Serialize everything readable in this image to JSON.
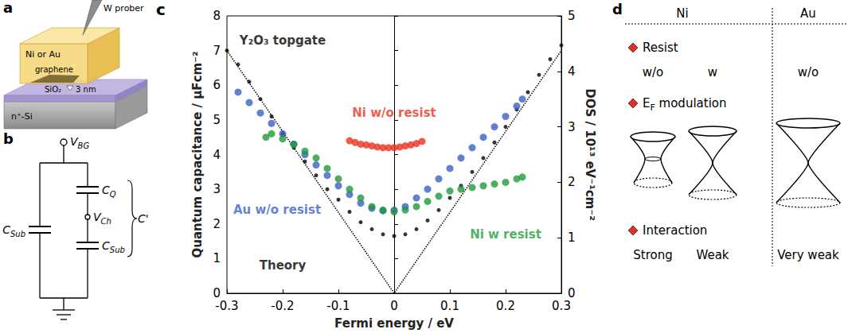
{
  "panels": {
    "a": {
      "letter": "a",
      "labels": {
        "prober": "W prober",
        "metal": "Ni or Au",
        "graphene": "graphene",
        "oxide": "SiO₂",
        "thickness": "3 nm",
        "substrate": "n⁺-Si"
      }
    },
    "b": {
      "letter": "b",
      "labels": {
        "gate": {
          "main": "V",
          "sub": "BG"
        },
        "c_sub_left": {
          "main": "C",
          "sub": "Sub"
        },
        "c_q": {
          "main": "C",
          "sub": "Q"
        },
        "channel": {
          "main": "V",
          "sub": "Ch"
        },
        "c_sub_right": {
          "main": "C",
          "sub": "Sub"
        },
        "total": {
          "main": "C'"
        }
      }
    },
    "c": {
      "letter": "c"
    },
    "d": {
      "letter": "d",
      "groups": [
        "Ni",
        "Au"
      ],
      "resist": {
        "head": "Resist",
        "cells": [
          "w/o",
          "w",
          "w/o"
        ]
      },
      "modulation": {
        "head_main": "E",
        "head_sub": "F",
        "head_rest": " modulation"
      },
      "interaction": {
        "head": "Interaction",
        "cells": [
          "Strong",
          "Weak",
          "Very weak"
        ]
      }
    }
  },
  "chart_data": {
    "type": "scatter",
    "xlabel": "Fermi energy / eV",
    "ylabel": "Quantum capacitance / µFcm⁻²",
    "y2label": "DOS / 10¹³ eV⁻¹cm⁻²",
    "xlim": [
      -0.3,
      0.3
    ],
    "xticks": [
      -0.3,
      -0.2,
      -0.1,
      0,
      0.1,
      0.2,
      0.3
    ],
    "ylim": [
      0,
      8
    ],
    "yticks": [
      0,
      1,
      2,
      3,
      4,
      5,
      6,
      7,
      8
    ],
    "y2lim": [
      0,
      5
    ],
    "y2ticks": [
      0,
      1,
      2,
      3,
      4,
      5
    ],
    "grid": false,
    "series": [
      {
        "type": "scatter",
        "marker": "circle",
        "color": "#000000",
        "x": [
          -0.3,
          -0.28,
          -0.26,
          -0.24,
          -0.22,
          -0.2,
          -0.18,
          -0.16,
          -0.14,
          -0.12,
          -0.1,
          -0.08,
          -0.06,
          -0.04,
          -0.02,
          0,
          0.02,
          0.04,
          0.06,
          0.08,
          0.1,
          0.12,
          0.14,
          0.16,
          0.18,
          0.2,
          0.22,
          0.24,
          0.26,
          0.28,
          0.3
        ],
        "values": [
          7.0,
          6.6,
          6.1,
          5.6,
          5.1,
          4.6,
          4.2,
          3.8,
          3.4,
          3.0,
          2.7,
          2.35,
          2.05,
          1.85,
          1.7,
          1.65,
          1.7,
          1.85,
          2.1,
          2.4,
          2.75,
          3.1,
          3.5,
          3.9,
          4.35,
          4.8,
          5.3,
          5.8,
          6.3,
          6.75,
          7.15
        ]
      },
      {
        "type": "line",
        "line_style": "dotted",
        "color": "#000000",
        "x": [
          -0.3,
          0,
          0.3
        ],
        "values": [
          7.0,
          0,
          7.0
        ]
      },
      {
        "type": "scatter",
        "marker": "circle",
        "color": "#3a5fc8",
        "x": [
          -0.28,
          -0.26,
          -0.24,
          -0.22,
          -0.2,
          -0.18,
          -0.16,
          -0.14,
          -0.12,
          -0.1,
          -0.08,
          -0.06,
          -0.04,
          -0.02,
          0,
          0.02,
          0.04,
          0.06,
          0.08,
          0.1,
          0.12,
          0.14,
          0.16,
          0.18,
          0.2,
          0.22,
          0.23
        ],
        "values": [
          5.8,
          5.5,
          5.2,
          4.9,
          4.6,
          4.3,
          4.0,
          3.7,
          3.4,
          3.1,
          2.85,
          2.6,
          2.45,
          2.38,
          2.4,
          2.5,
          2.75,
          3.0,
          3.3,
          3.6,
          3.9,
          4.2,
          4.5,
          4.8,
          5.1,
          5.4,
          5.6
        ]
      },
      {
        "type": "scatter",
        "marker": "circle",
        "color": "#1f9a3a",
        "x": [
          -0.23,
          -0.22,
          -0.2,
          -0.18,
          -0.16,
          -0.14,
          -0.12,
          -0.1,
          -0.08,
          -0.06,
          -0.04,
          -0.02,
          0,
          0.02,
          0.04,
          0.06,
          0.08,
          0.1,
          0.12,
          0.14,
          0.16,
          0.18,
          0.2,
          0.22,
          0.23
        ],
        "values": [
          4.5,
          4.6,
          4.45,
          4.3,
          4.1,
          3.9,
          3.6,
          3.3,
          3.0,
          2.75,
          2.5,
          2.4,
          2.35,
          2.4,
          2.5,
          2.65,
          2.8,
          2.95,
          3.0,
          3.05,
          3.1,
          3.15,
          3.2,
          3.3,
          3.35
        ]
      },
      {
        "type": "scatter",
        "marker": "circle",
        "color": "#e8321e",
        "x": [
          -0.08,
          -0.07,
          -0.06,
          -0.05,
          -0.04,
          -0.03,
          -0.02,
          -0.01,
          0,
          0.01,
          0.02,
          0.03,
          0.04,
          0.05
        ],
        "values": [
          4.4,
          4.35,
          4.3,
          4.28,
          4.25,
          4.22,
          4.2,
          4.2,
          4.2,
          4.22,
          4.25,
          4.28,
          4.32,
          4.38
        ]
      }
    ],
    "annotations": [
      {
        "text": "Y₂O₃ topgate",
        "x": -0.2,
        "y": 7.3,
        "color": "#000000"
      },
      {
        "text": "Ni w/o resist",
        "x": 0.0,
        "y": 5.2,
        "color": "#e8321e"
      },
      {
        "text": "Au w/o resist",
        "x": -0.21,
        "y": 2.4,
        "color": "#3a5fc8"
      },
      {
        "text": "Ni w resist",
        "x": 0.2,
        "y": 1.7,
        "color": "#1f9a3a"
      },
      {
        "text": "Theory",
        "x": -0.2,
        "y": 0.8,
        "color": "#000000"
      }
    ]
  }
}
